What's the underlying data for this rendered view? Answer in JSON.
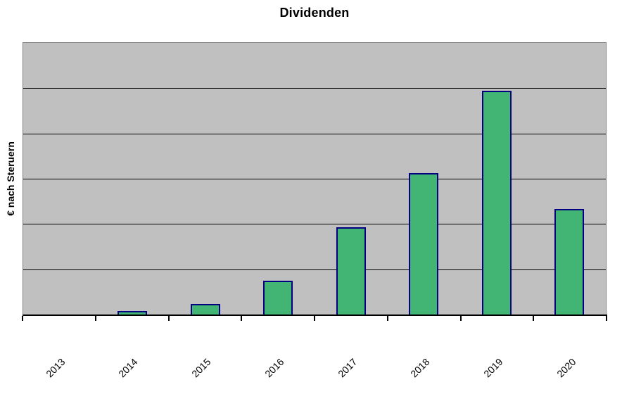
{
  "chart_data": {
    "type": "bar",
    "title": "Dividenden",
    "ylabel": "€ nach Steruern",
    "xlabel": "",
    "categories": [
      "2013",
      "2014",
      "2015",
      "2016",
      "2017",
      "2018",
      "2019",
      "2020"
    ],
    "values": [
      0,
      0.08,
      0.23,
      0.74,
      1.92,
      3.12,
      4.95,
      2.33
    ],
    "ylim": [
      0,
      6
    ],
    "grid": true,
    "grid_divisions": 6,
    "y_tick_labels": "hidden",
    "legend": "none",
    "x_tick_label_rotation_deg": 45,
    "colors": {
      "bar_fill": "#42B575",
      "bar_border": "#000080",
      "plot_background": "#C0C0C0",
      "plot_border": "#808080",
      "gridline": "#000000",
      "axis_line": "#000000",
      "text": "#000000",
      "page_background": "#FFFFFF"
    }
  }
}
